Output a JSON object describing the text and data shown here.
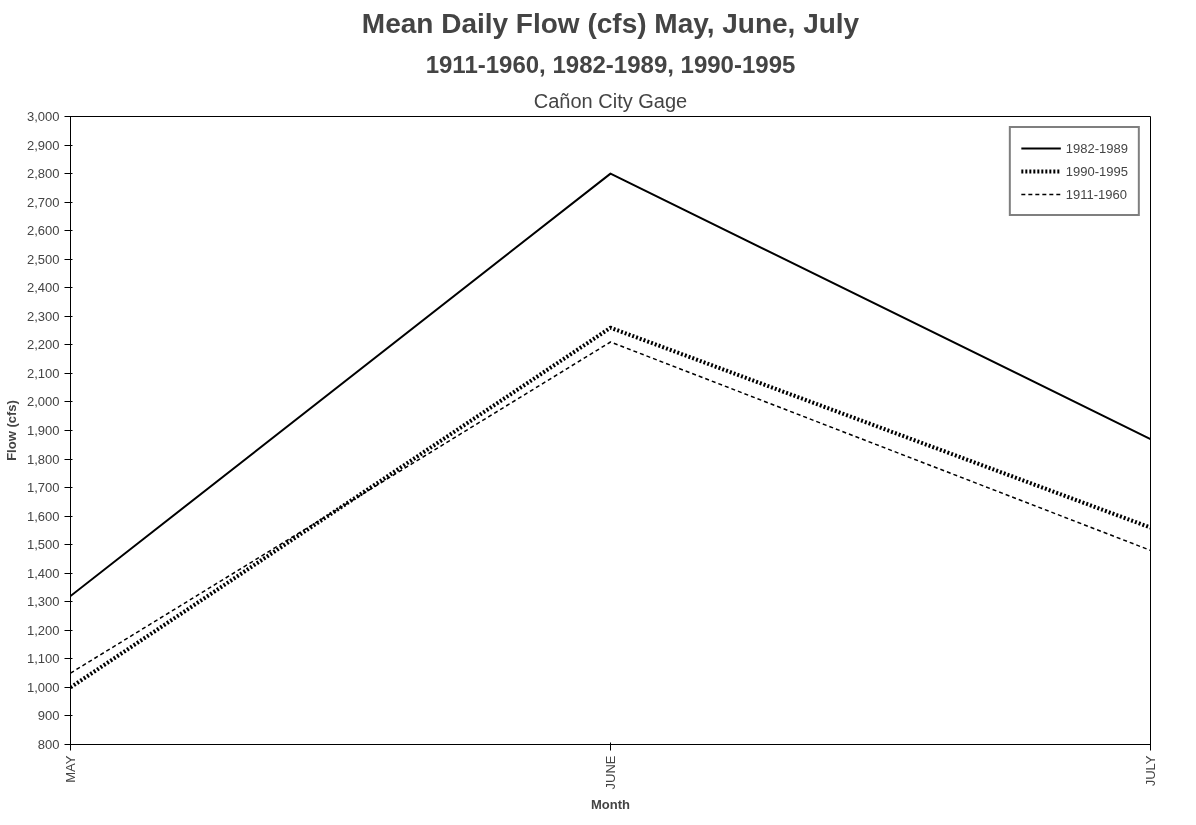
{
  "chart_data": {
    "type": "line",
    "title": "Mean Daily Flow (cfs) May, June, July",
    "subtitle": [
      "1911-1960, 1982-1989, 1990-1995",
      "Cañon City Gage"
    ],
    "xlabel": "Month",
    "ylabel": "Flow (cfs)",
    "categories": [
      "MAY",
      "JUNE",
      "JULY"
    ],
    "series": [
      {
        "name": "1982-1989",
        "color": "#000000",
        "values": [
          1320,
          2800,
          1870
        ],
        "line_style": "solid"
      },
      {
        "name": "1990-1995",
        "color": "#000000",
        "values": [
          1000,
          2260,
          1560
        ],
        "line_style": "dotted"
      },
      {
        "name": "1911-1960",
        "color": "#000000",
        "values": [
          1050,
          2210,
          1480
        ],
        "line_style": "dashed"
      }
    ],
    "ylim": [
      800,
      3000
    ],
    "yticks": [
      {
        "value": 800,
        "label": "800"
      },
      {
        "value": 900,
        "label": "900"
      },
      {
        "value": 1000,
        "label": "1,000"
      },
      {
        "value": 1100,
        "label": "1,100"
      },
      {
        "value": 1200,
        "label": "1,200"
      },
      {
        "value": 1300,
        "label": "1,300"
      },
      {
        "value": 1400,
        "label": "1,400"
      },
      {
        "value": 1500,
        "label": "1,500"
      },
      {
        "value": 1600,
        "label": "1,600"
      },
      {
        "value": 1700,
        "label": "1,700"
      },
      {
        "value": 1800,
        "label": "1,800"
      },
      {
        "value": 1900,
        "label": "1,900"
      },
      {
        "value": 2000,
        "label": "2,000"
      },
      {
        "value": 2100,
        "label": "2,100"
      },
      {
        "value": 2200,
        "label": "2,200"
      },
      {
        "value": 2300,
        "label": "2,300"
      },
      {
        "value": 2400,
        "label": "2,400"
      },
      {
        "value": 2500,
        "label": "2,500"
      },
      {
        "value": 2600,
        "label": "2,600"
      },
      {
        "value": 2700,
        "label": "2,700"
      },
      {
        "value": 2800,
        "label": "2,800"
      },
      {
        "value": 2900,
        "label": "2,900"
      },
      {
        "value": 3000,
        "label": "3,000"
      }
    ],
    "grid": false,
    "legend": "top right",
    "marker": "none"
  }
}
